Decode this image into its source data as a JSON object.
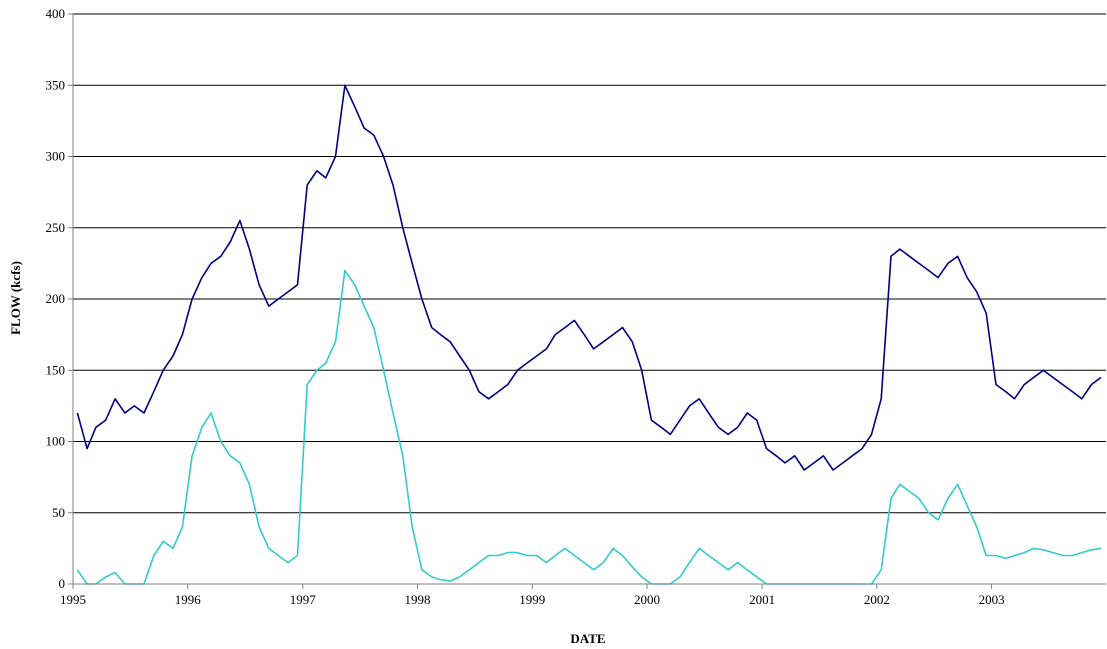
{
  "chart_data": {
    "type": "line",
    "title": "",
    "xlabel": "DATE",
    "ylabel": "FLOW  (kcfs)",
    "xlim": [
      "1995-01-01",
      "2003-12-31"
    ],
    "ylim": [
      0,
      400
    ],
    "y_ticks": [
      0,
      50,
      100,
      150,
      200,
      250,
      300,
      350,
      400
    ],
    "x_ticks": [
      "1995",
      "1996",
      "1997",
      "1998",
      "1999",
      "2000",
      "2001",
      "2002",
      "2003"
    ],
    "grid": "horizontal",
    "legend": "none",
    "colors": {
      "series_1": "#000080",
      "series_2": "#33CCCC",
      "grid": "#000000",
      "axis": "#808080"
    },
    "series": [
      {
        "color": "#000080",
        "x": [
          "1995-01",
          "1995-02",
          "1995-03",
          "1995-04",
          "1995-05",
          "1995-06",
          "1995-07",
          "1995-08",
          "1995-09",
          "1995-10",
          "1995-11",
          "1995-12",
          "1996-01",
          "1996-02",
          "1996-03",
          "1996-04",
          "1996-05",
          "1996-06",
          "1996-07",
          "1996-08",
          "1996-09",
          "1996-10",
          "1996-11",
          "1996-12",
          "1997-01",
          "1997-02",
          "1997-03",
          "1997-04",
          "1997-05",
          "1997-06",
          "1997-07",
          "1997-08",
          "1997-09",
          "1997-10",
          "1997-11",
          "1997-12",
          "1998-01",
          "1998-02",
          "1998-03",
          "1998-04",
          "1998-05",
          "1998-06",
          "1998-07",
          "1998-08",
          "1998-09",
          "1998-10",
          "1998-11",
          "1998-12",
          "1999-01",
          "1999-02",
          "1999-03",
          "1999-04",
          "1999-05",
          "1999-06",
          "1999-07",
          "1999-08",
          "1999-09",
          "1999-10",
          "1999-11",
          "1999-12",
          "2000-01",
          "2000-02",
          "2000-03",
          "2000-04",
          "2000-05",
          "2000-06",
          "2000-07",
          "2000-08",
          "2000-09",
          "2000-10",
          "2000-11",
          "2000-12",
          "2001-01",
          "2001-02",
          "2001-03",
          "2001-04",
          "2001-05",
          "2001-06",
          "2001-07",
          "2001-08",
          "2001-09",
          "2001-10",
          "2001-11",
          "2001-12",
          "2002-01",
          "2002-02",
          "2002-03",
          "2002-04",
          "2002-05",
          "2002-06",
          "2002-07",
          "2002-08",
          "2002-09",
          "2002-10",
          "2002-11",
          "2002-12",
          "2003-01",
          "2003-02",
          "2003-03",
          "2003-04",
          "2003-05",
          "2003-06",
          "2003-07",
          "2003-08",
          "2003-09",
          "2003-10",
          "2003-11",
          "2003-12"
        ],
        "y": [
          120,
          95,
          110,
          115,
          130,
          120,
          125,
          120,
          135,
          150,
          160,
          175,
          200,
          215,
          225,
          230,
          240,
          255,
          235,
          210,
          195,
          200,
          205,
          210,
          280,
          290,
          285,
          300,
          350,
          335,
          320,
          315,
          300,
          280,
          250,
          225,
          200,
          180,
          175,
          170,
          160,
          150,
          135,
          130,
          135,
          140,
          150,
          155,
          160,
          165,
          175,
          180,
          185,
          175,
          165,
          170,
          175,
          180,
          170,
          150,
          115,
          110,
          105,
          115,
          125,
          130,
          120,
          110,
          105,
          110,
          120,
          115,
          95,
          90,
          85,
          90,
          80,
          85,
          90,
          80,
          85,
          90,
          95,
          105,
          130,
          230,
          235,
          230,
          225,
          220,
          215,
          225,
          230,
          215,
          205,
          190,
          140,
          135,
          130,
          140,
          145,
          150,
          145,
          140,
          135,
          130,
          140,
          145
        ]
      },
      {
        "color": "#33CCCC",
        "x": [
          "1995-01",
          "1995-02",
          "1995-03",
          "1995-04",
          "1995-05",
          "1995-06",
          "1995-07",
          "1995-08",
          "1995-09",
          "1995-10",
          "1995-11",
          "1995-12",
          "1996-01",
          "1996-02",
          "1996-03",
          "1996-04",
          "1996-05",
          "1996-06",
          "1996-07",
          "1996-08",
          "1996-09",
          "1996-10",
          "1996-11",
          "1996-12",
          "1997-01",
          "1997-02",
          "1997-03",
          "1997-04",
          "1997-05",
          "1997-06",
          "1997-07",
          "1997-08",
          "1997-09",
          "1997-10",
          "1997-11",
          "1997-12",
          "1998-01",
          "1998-02",
          "1998-03",
          "1998-04",
          "1998-05",
          "1998-06",
          "1998-07",
          "1998-08",
          "1998-09",
          "1998-10",
          "1998-11",
          "1998-12",
          "1999-01",
          "1999-02",
          "1999-03",
          "1999-04",
          "1999-05",
          "1999-06",
          "1999-07",
          "1999-08",
          "1999-09",
          "1999-10",
          "1999-11",
          "1999-12",
          "2000-01",
          "2000-02",
          "2000-03",
          "2000-04",
          "2000-05",
          "2000-06",
          "2000-07",
          "2000-08",
          "2000-09",
          "2000-10",
          "2000-11",
          "2000-12",
          "2001-01",
          "2001-02",
          "2001-03",
          "2001-04",
          "2001-05",
          "2001-06",
          "2001-07",
          "2001-08",
          "2001-09",
          "2001-10",
          "2001-11",
          "2001-12",
          "2002-01",
          "2002-02",
          "2002-03",
          "2002-04",
          "2002-05",
          "2002-06",
          "2002-07",
          "2002-08",
          "2002-09",
          "2002-10",
          "2002-11",
          "2002-12",
          "2003-01",
          "2003-02",
          "2003-03",
          "2003-04",
          "2003-05",
          "2003-06",
          "2003-07",
          "2003-08",
          "2003-09",
          "2003-10",
          "2003-11",
          "2003-12"
        ],
        "y": [
          10,
          0,
          0,
          5,
          8,
          0,
          0,
          0,
          20,
          30,
          25,
          40,
          90,
          110,
          120,
          100,
          90,
          85,
          70,
          40,
          25,
          20,
          15,
          20,
          140,
          150,
          155,
          170,
          220,
          210,
          195,
          180,
          150,
          120,
          90,
          40,
          10,
          5,
          3,
          2,
          5,
          10,
          15,
          20,
          20,
          22,
          22,
          20,
          20,
          15,
          20,
          25,
          20,
          15,
          10,
          15,
          25,
          20,
          12,
          5,
          0,
          0,
          0,
          5,
          15,
          25,
          20,
          15,
          10,
          15,
          10,
          5,
          0,
          0,
          0,
          0,
          0,
          0,
          0,
          0,
          0,
          0,
          0,
          0,
          10,
          60,
          70,
          65,
          60,
          50,
          45,
          60,
          70,
          55,
          40,
          20,
          20,
          18,
          20,
          22,
          25,
          24,
          22,
          20,
          20,
          22,
          24,
          25
        ]
      }
    ]
  }
}
